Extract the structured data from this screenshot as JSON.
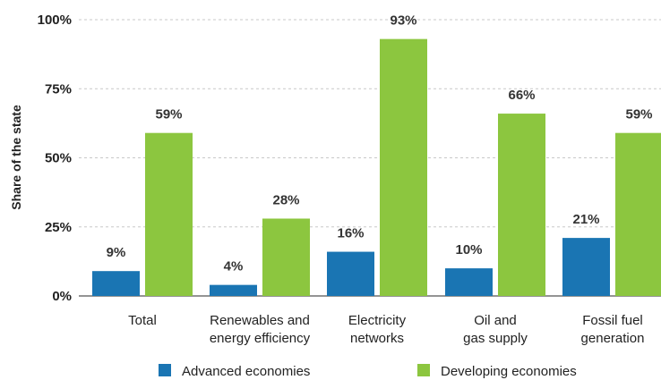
{
  "chart_data": {
    "type": "bar",
    "ylabel": "Share of the state",
    "ylim": [
      0,
      100
    ],
    "yticks": [
      "0%",
      "25%",
      "50%",
      "75%",
      "100%"
    ],
    "ytick_values": [
      0,
      25,
      50,
      75,
      100
    ],
    "categories": [
      [
        "Total"
      ],
      [
        "Renewables and",
        "energy efficiency"
      ],
      [
        "Electricity",
        "networks"
      ],
      [
        "Oil and",
        "gas supply"
      ],
      [
        "Fossil fuel",
        "generation"
      ]
    ],
    "series": [
      {
        "name": "Advanced economies",
        "color": "#1a75b3",
        "values": [
          9,
          4,
          16,
          10,
          21
        ],
        "labels": [
          "9%",
          "4%",
          "16%",
          "10%",
          "21%"
        ]
      },
      {
        "name": "Developing economies",
        "color": "#8cc63f",
        "values": [
          59,
          28,
          93,
          66,
          59
        ],
        "labels": [
          "59%",
          "28%",
          "93%",
          "66%",
          "59%"
        ]
      }
    ],
    "grid": "horizontal-dashed",
    "legend": "bottom"
  }
}
